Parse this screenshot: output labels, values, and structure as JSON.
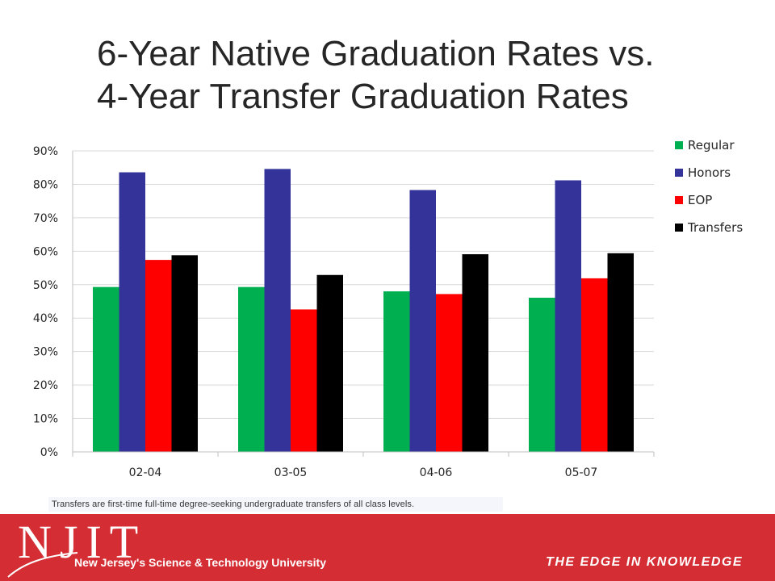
{
  "slide": {
    "title_line1": "6-Year Native Graduation Rates vs.",
    "title_line2": "4-Year Transfer Graduation Rates",
    "footnote": "Transfers are first-time full-time degree-seeking undergraduate transfers of all class levels.",
    "logo_text": "NJIT",
    "logo_tagline": "New Jersey's Science & Technology University",
    "slogan": "THE EDGE IN KNOWLEDGE",
    "footer_color": "#d42e34"
  },
  "chart_data": {
    "type": "bar",
    "categories": [
      "02-04",
      "03-05",
      "04-06",
      "05-07"
    ],
    "series": [
      {
        "name": "Regular",
        "color": "#00b050",
        "values": [
          49.3,
          49.3,
          48.0,
          46.1
        ]
      },
      {
        "name": "Honors",
        "color": "#333399",
        "values": [
          83.6,
          84.6,
          78.3,
          81.2
        ]
      },
      {
        "name": "EOP",
        "color": "#ff0000",
        "values": [
          57.4,
          42.6,
          47.2,
          51.9
        ]
      },
      {
        "name": "Transfers",
        "color": "#000000",
        "values": [
          58.8,
          52.9,
          59.1,
          59.4
        ]
      }
    ],
    "ylim": [
      0,
      90
    ],
    "yticks": [
      "0%",
      "10%",
      "20%",
      "30%",
      "40%",
      "50%",
      "60%",
      "70%",
      "80%",
      "90%"
    ],
    "grid": true,
    "legend_position": "top-right"
  }
}
